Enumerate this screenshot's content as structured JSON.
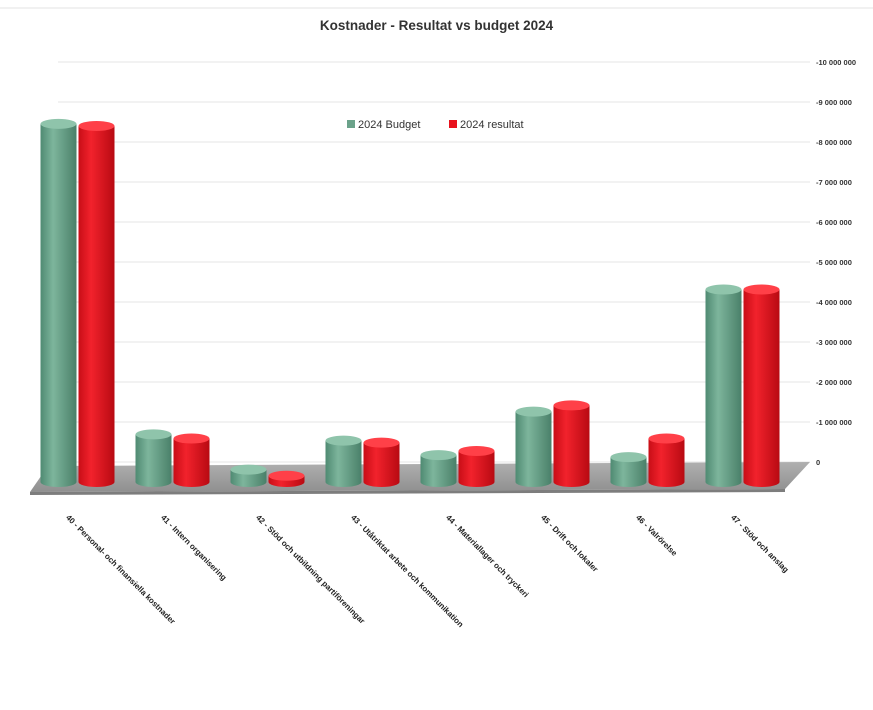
{
  "chart_data": {
    "type": "bar",
    "title": "Kostnader - Resultat vs budget 2024",
    "categories": [
      "40 - Personal- och finansiella kostnader",
      "41 - Intern organisering",
      "42 - Stöd och utbildning partiföreningar",
      "43 - Utåtriktat arbete och kommunikation",
      "44 - Materiallager och tryckeri",
      "45 - Drift och lokaler",
      "46 - Valrörelse",
      "47 - Stöd och anslag"
    ],
    "series": [
      {
        "name": "2024 Budget",
        "color": "#6ba28a",
        "values": [
          8650000,
          1150000,
          300000,
          1000000,
          650000,
          1700000,
          600000,
          4650000
        ]
      },
      {
        "name": "2024 resultat",
        "color": "#e8121d",
        "values": [
          8600000,
          1050000,
          150000,
          950000,
          750000,
          1850000,
          1050000,
          4650000
        ]
      }
    ],
    "ylim": [
      0,
      10000000
    ],
    "yticks": [
      0,
      1000000,
      2000000,
      3000000,
      4000000,
      5000000,
      6000000,
      7000000,
      8000000,
      9000000,
      10000000
    ],
    "ytick_labels": [
      "0",
      "-1 000 000",
      "-2 000 000",
      "-3 000 000",
      "-4 000 000",
      "-5 000 000",
      "-6 000 000",
      "-7 000 000",
      "-8 000 000",
      "-9 000 000",
      "-10 000 000"
    ],
    "xlabel": "",
    "ylabel": "",
    "grid": true,
    "legend_position": "top-center",
    "view": "3d-clustered-cylinder"
  }
}
